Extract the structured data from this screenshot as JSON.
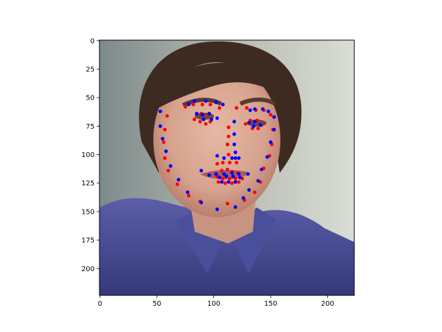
{
  "chart_data": {
    "type": "scatter",
    "title": "",
    "xlabel": "",
    "ylabel": "",
    "xlim": [
      -0.5,
      223.5
    ],
    "ylim": [
      223.5,
      -0.5
    ],
    "y_inverted": true,
    "grid": false,
    "legend": "none",
    "background": "photo of a young man with dark wavy hair wearing a blue shirt",
    "xticks": [
      0,
      50,
      100,
      150,
      200
    ],
    "yticks": [
      0,
      25,
      50,
      75,
      100,
      125,
      150,
      175,
      200
    ],
    "xtick_labels": [
      "0",
      "50",
      "100",
      "150",
      "200"
    ],
    "ytick_labels": [
      "0",
      "25",
      "50",
      "75",
      "100",
      "125",
      "150",
      "175",
      "200"
    ],
    "series": [
      {
        "color": "#ff0000",
        "points": [
          [
            59,
            66
          ],
          [
            57,
            78
          ],
          [
            56,
            89
          ],
          [
            57,
            103
          ],
          [
            60,
            114
          ],
          [
            68,
            126
          ],
          [
            78,
            136
          ],
          [
            88,
            141
          ],
          [
            112,
            143
          ],
          [
            127,
            140
          ],
          [
            136,
            133
          ],
          [
            141,
            124
          ],
          [
            144,
            112
          ],
          [
            149,
            101
          ],
          [
            151,
            91
          ],
          [
            152,
            78
          ],
          [
            75,
            58
          ],
          [
            82,
            56
          ],
          [
            90,
            56
          ],
          [
            97,
            56
          ],
          [
            105,
            59
          ],
          [
            120,
            59
          ],
          [
            129,
            59
          ],
          [
            137,
            61
          ],
          [
            144,
            61
          ],
          [
            150,
            65
          ],
          [
            83,
            69
          ],
          [
            88,
            71
          ],
          [
            93,
            73
          ],
          [
            97,
            71
          ],
          [
            95,
            65
          ],
          [
            89,
            64
          ],
          [
            128,
            73
          ],
          [
            134,
            77
          ],
          [
            139,
            77
          ],
          [
            142,
            74
          ],
          [
            138,
            70
          ],
          [
            132,
            70
          ],
          [
            113,
            76
          ],
          [
            113,
            84
          ],
          [
            112,
            91
          ],
          [
            113,
            100
          ],
          [
            103,
            108
          ],
          [
            108,
            107
          ],
          [
            114,
            107
          ],
          [
            120,
            107
          ],
          [
            103,
            119
          ],
          [
            107,
            114
          ],
          [
            112,
            113
          ],
          [
            116,
            115
          ],
          [
            121,
            116
          ],
          [
            125,
            121
          ],
          [
            108,
            121
          ],
          [
            114,
            121
          ],
          [
            119,
            121
          ],
          [
            104,
            124
          ],
          [
            110,
            125
          ],
          [
            116,
            125
          ],
          [
            122,
            124
          ]
        ]
      },
      {
        "color": "#0000ff",
        "points": [
          [
            53,
            62
          ],
          [
            53,
            75
          ],
          [
            55,
            86
          ],
          [
            58,
            97
          ],
          [
            62,
            110
          ],
          [
            69,
            122
          ],
          [
            77,
            133
          ],
          [
            89,
            142
          ],
          [
            103,
            148
          ],
          [
            119,
            146
          ],
          [
            126,
            138
          ],
          [
            131,
            131
          ],
          [
            139,
            123
          ],
          [
            142,
            113
          ],
          [
            147,
            102
          ],
          [
            150,
            89
          ],
          [
            153,
            78
          ],
          [
            78,
            56
          ],
          [
            83,
            53
          ],
          [
            93,
            53
          ],
          [
            102,
            54
          ],
          [
            108,
            56
          ],
          [
            132,
            61
          ],
          [
            136,
            60
          ],
          [
            143,
            60
          ],
          [
            148,
            62
          ],
          [
            153,
            67
          ],
          [
            85,
            64
          ],
          [
            90,
            65
          ],
          [
            96,
            64
          ],
          [
            91,
            69
          ],
          [
            98,
            69
          ],
          [
            103,
            68
          ],
          [
            131,
            72
          ],
          [
            136,
            71
          ],
          [
            141,
            74
          ],
          [
            135,
            75
          ],
          [
            118,
            71
          ],
          [
            118,
            82
          ],
          [
            118,
            91
          ],
          [
            119,
            98
          ],
          [
            119,
            103
          ],
          [
            103,
            101
          ],
          [
            109,
            103
          ],
          [
            116,
            103
          ],
          [
            122,
            103
          ],
          [
            89,
            114
          ],
          [
            96,
            118
          ],
          [
            102,
            117
          ],
          [
            109,
            117
          ],
          [
            116,
            116
          ],
          [
            122,
            117
          ],
          [
            130,
            117
          ],
          [
            105,
            120
          ],
          [
            111,
            119
          ],
          [
            117,
            119
          ],
          [
            107,
            124
          ],
          [
            113,
            124
          ],
          [
            119,
            124
          ],
          [
            123,
            120
          ]
        ]
      }
    ]
  }
}
